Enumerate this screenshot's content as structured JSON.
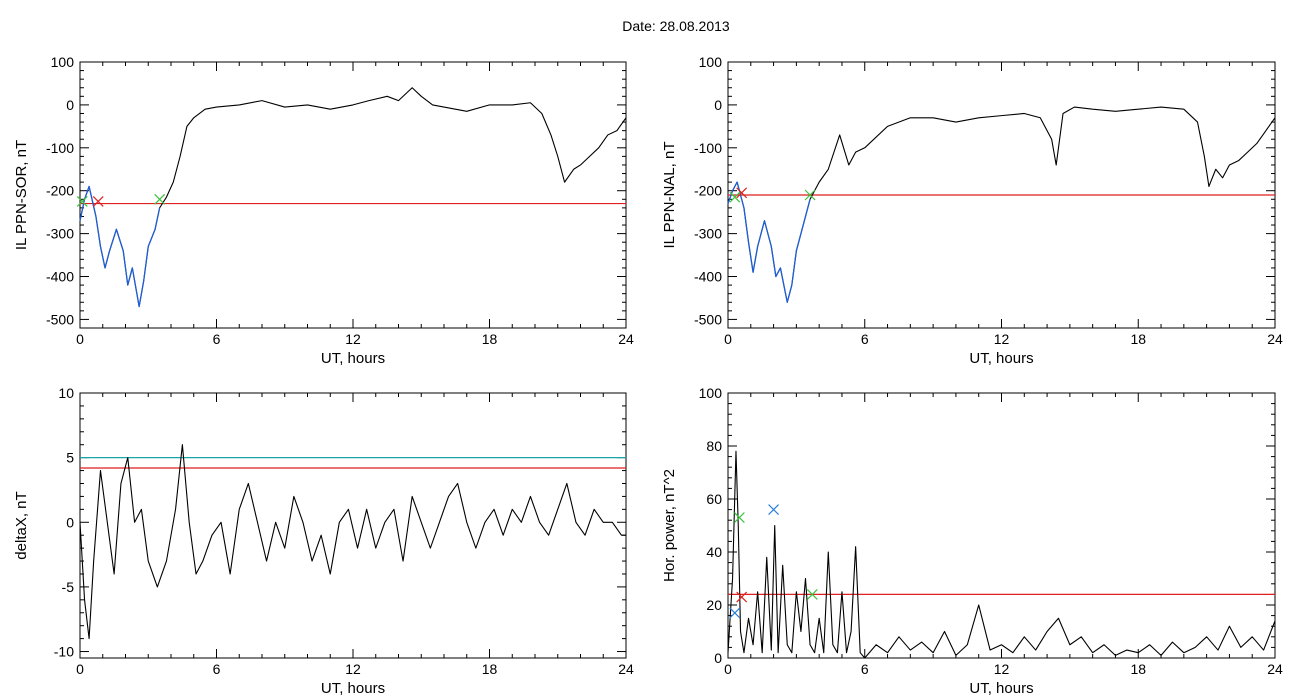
{
  "page_title": "Date:  28.08.2013",
  "colors": {
    "axis": "#000000",
    "trace": "#000000",
    "highlight_trace": "#1f5fd6",
    "threshold_red": "#e01f1f",
    "threshold_teal": "#1aa6a6",
    "marker_red": "#e01f1f",
    "marker_green": "#3cc23c",
    "marker_blue": "#2a7fd8"
  },
  "chart_data": [
    {
      "type": "line",
      "ylabel": "IL PPN-SOR, nT",
      "xlabel": "UT, hours",
      "xlim": [
        0,
        24
      ],
      "ylim": [
        -520,
        100
      ],
      "xticks": [
        0,
        6,
        12,
        18,
        24
      ],
      "yticks": [
        -500,
        -400,
        -300,
        -200,
        -100,
        0,
        100
      ],
      "series": [
        {
          "x": [
            0,
            0.2,
            0.4,
            0.7,
            0.9,
            1.1,
            1.3,
            1.6,
            1.9,
            2.1,
            2.3,
            2.6,
            2.8,
            3.0,
            3.3,
            3.5,
            3.8,
            4.1,
            4.4,
            4.7,
            5.0,
            5.5,
            6.0,
            7.0,
            8.0,
            9.0,
            10.0,
            11.0,
            12.0,
            12.7,
            13.5,
            14.0,
            14.6,
            15.0,
            15.5,
            16.0,
            17.0,
            18.0,
            19.0,
            19.8,
            20.3,
            20.7,
            21.0,
            21.3,
            21.7,
            22.0,
            22.4,
            22.8,
            23.2,
            23.6,
            24.0
          ],
          "y": [
            -270,
            -220,
            -190,
            -260,
            -330,
            -380,
            -340,
            -290,
            -340,
            -420,
            -380,
            -470,
            -410,
            -330,
            -290,
            -240,
            -215,
            -180,
            -120,
            -50,
            -30,
            -10,
            -5,
            0,
            10,
            -5,
            0,
            -10,
            0,
            10,
            20,
            10,
            40,
            20,
            0,
            -5,
            -15,
            0,
            0,
            5,
            -20,
            -70,
            -120,
            -180,
            -150,
            -140,
            -120,
            -100,
            -70,
            -60,
            -30
          ]
        }
      ],
      "threshold_red": -230,
      "highlight_range": [
        0,
        3.6
      ],
      "markers": [
        {
          "color": "red",
          "x": 0.8,
          "y": -225
        },
        {
          "color": "green",
          "x": 3.5,
          "y": -220
        },
        {
          "color": "green",
          "x": 0.1,
          "y": -225
        }
      ]
    },
    {
      "type": "line",
      "ylabel": "IL PPN-NAL, nT",
      "xlabel": "UT, hours",
      "xlim": [
        0,
        24
      ],
      "ylim": [
        -520,
        100
      ],
      "xticks": [
        0,
        6,
        12,
        18,
        24
      ],
      "yticks": [
        -500,
        -400,
        -300,
        -200,
        -100,
        0,
        100
      ],
      "series": [
        {
          "x": [
            0,
            0.2,
            0.4,
            0.7,
            0.9,
            1.1,
            1.3,
            1.6,
            1.9,
            2.1,
            2.3,
            2.6,
            2.8,
            3.0,
            3.3,
            3.6,
            4.0,
            4.4,
            4.9,
            5.3,
            5.6,
            6.0,
            7.0,
            8.0,
            9.0,
            10.0,
            11.0,
            12.0,
            13.0,
            13.7,
            14.2,
            14.4,
            14.7,
            15.2,
            16.0,
            17.0,
            18.0,
            19.0,
            20.0,
            20.6,
            20.9,
            21.1,
            21.4,
            21.7,
            22.0,
            22.4,
            22.8,
            23.2,
            23.6,
            24.0
          ],
          "y": [
            -230,
            -200,
            -180,
            -240,
            -320,
            -390,
            -330,
            -270,
            -330,
            -400,
            -380,
            -460,
            -420,
            -340,
            -280,
            -220,
            -180,
            -150,
            -70,
            -140,
            -110,
            -100,
            -50,
            -30,
            -30,
            -40,
            -30,
            -25,
            -20,
            -30,
            -80,
            -140,
            -20,
            -5,
            -10,
            -15,
            -10,
            -5,
            -10,
            -40,
            -120,
            -190,
            -150,
            -170,
            -140,
            -130,
            -110,
            -90,
            -60,
            -30
          ]
        }
      ],
      "threshold_red": -210,
      "highlight_range": [
        0,
        3.6
      ],
      "markers": [
        {
          "color": "red",
          "x": 0.6,
          "y": -205
        },
        {
          "color": "green",
          "x": 0.3,
          "y": -215
        },
        {
          "color": "green",
          "x": 3.6,
          "y": -210
        }
      ]
    },
    {
      "type": "line",
      "ylabel": "deltaX, nT",
      "xlabel": "UT, hours",
      "xlim": [
        0,
        24
      ],
      "ylim": [
        -10.5,
        10
      ],
      "xticks": [
        0,
        6,
        12,
        18,
        24
      ],
      "yticks": [
        -10,
        -5,
        0,
        5,
        10
      ],
      "series": [
        {
          "x": [
            0,
            0.2,
            0.4,
            0.6,
            0.9,
            1.2,
            1.5,
            1.8,
            2.1,
            2.4,
            2.7,
            3.0,
            3.4,
            3.8,
            4.2,
            4.5,
            4.8,
            5.1,
            5.4,
            5.8,
            6.2,
            6.6,
            7.0,
            7.4,
            7.8,
            8.2,
            8.6,
            9.0,
            9.4,
            9.8,
            10.2,
            10.6,
            11.0,
            11.4,
            11.8,
            12.2,
            12.6,
            13.0,
            13.4,
            13.8,
            14.2,
            14.6,
            15.0,
            15.4,
            15.8,
            16.2,
            16.6,
            17.0,
            17.4,
            17.8,
            18.2,
            18.6,
            19.0,
            19.4,
            19.8,
            20.2,
            20.6,
            21.0,
            21.4,
            21.8,
            22.2,
            22.6,
            23.0,
            23.4,
            23.8,
            24.0
          ],
          "y": [
            0,
            -6,
            -9,
            -3,
            4,
            0,
            -4,
            3,
            5,
            0,
            1,
            -3,
            -5,
            -3,
            1,
            6,
            0,
            -4,
            -3,
            -1,
            0,
            -4,
            1,
            3,
            0,
            -3,
            0,
            -2,
            2,
            0,
            -3,
            -1,
            -4,
            0,
            1,
            -2,
            1,
            -2,
            0,
            1,
            -3,
            2,
            0,
            -2,
            0,
            2,
            3,
            0,
            -2,
            0,
            1,
            -1,
            1,
            0,
            2,
            0,
            -1,
            1,
            3,
            0,
            -1,
            1,
            0,
            0,
            -1,
            -1
          ]
        }
      ],
      "threshold_red": 4.2,
      "threshold_teal": 5.0,
      "markers": []
    },
    {
      "type": "line",
      "ylabel": "Hor. power, nT^2",
      "xlabel": "UT, hours",
      "xlim": [
        0,
        24
      ],
      "ylim": [
        0,
        100
      ],
      "xticks": [
        0,
        6,
        12,
        18,
        24
      ],
      "yticks": [
        0,
        20,
        40,
        60,
        80,
        100
      ],
      "series": [
        {
          "x": [
            0,
            0.2,
            0.35,
            0.45,
            0.55,
            0.7,
            0.9,
            1.1,
            1.3,
            1.5,
            1.7,
            1.9,
            2.05,
            2.2,
            2.4,
            2.6,
            2.8,
            3.0,
            3.2,
            3.4,
            3.6,
            3.8,
            4.0,
            4.2,
            4.4,
            4.6,
            4.8,
            5.0,
            5.2,
            5.4,
            5.6,
            5.8,
            6.0,
            6.5,
            7.0,
            7.5,
            8.0,
            8.5,
            9.0,
            9.5,
            10.0,
            10.5,
            11.0,
            11.5,
            12.0,
            12.5,
            13.0,
            13.5,
            14.0,
            14.5,
            15.0,
            15.5,
            16.0,
            16.5,
            17.0,
            17.5,
            18.0,
            18.5,
            19.0,
            19.5,
            20.0,
            20.5,
            21.0,
            21.5,
            22.0,
            22.5,
            23.0,
            23.5,
            24.0
          ],
          "y": [
            2,
            30,
            78,
            50,
            10,
            2,
            15,
            5,
            25,
            2,
            38,
            3,
            50,
            2,
            35,
            5,
            2,
            25,
            10,
            30,
            5,
            2,
            15,
            2,
            40,
            5,
            2,
            25,
            2,
            10,
            42,
            2,
            0,
            5,
            2,
            8,
            3,
            6,
            2,
            10,
            1,
            5,
            20,
            3,
            5,
            2,
            8,
            3,
            10,
            15,
            5,
            8,
            2,
            5,
            1,
            3,
            2,
            5,
            1,
            6,
            2,
            4,
            8,
            3,
            12,
            4,
            8,
            3,
            14
          ]
        }
      ],
      "threshold_red": 24,
      "markers": [
        {
          "color": "green",
          "x": 0.5,
          "y": 53
        },
        {
          "color": "blue",
          "x": 0.3,
          "y": 17
        },
        {
          "color": "red",
          "x": 0.6,
          "y": 23
        },
        {
          "color": "blue",
          "x": 2.0,
          "y": 56
        },
        {
          "color": "green",
          "x": 3.7,
          "y": 24
        }
      ]
    }
  ]
}
